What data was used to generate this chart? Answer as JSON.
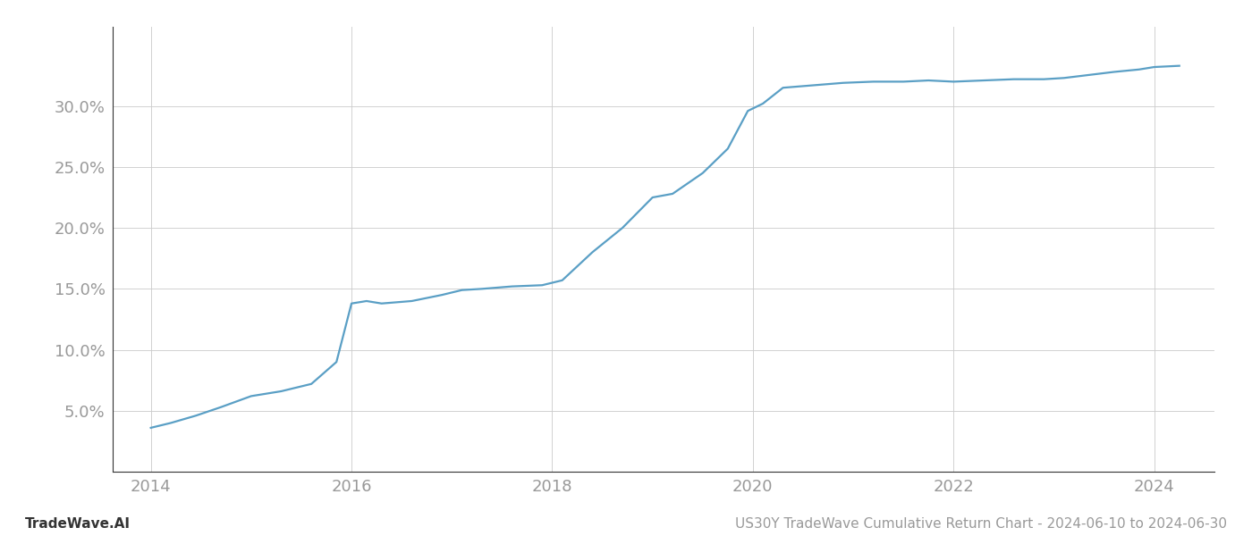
{
  "title": "US30Y TradeWave Cumulative Return Chart - 2024-06-10 to 2024-06-30",
  "watermark": "TradeWave.AI",
  "line_color": "#5a9fc5",
  "background_color": "#ffffff",
  "grid_color": "#cccccc",
  "x_values": [
    2014.0,
    2014.2,
    2014.45,
    2014.7,
    2015.0,
    2015.3,
    2015.6,
    2015.85,
    2016.0,
    2016.15,
    2016.3,
    2016.6,
    2016.9,
    2017.1,
    2017.3,
    2017.6,
    2017.9,
    2018.1,
    2018.4,
    2018.7,
    2019.0,
    2019.2,
    2019.5,
    2019.75,
    2019.95,
    2020.1,
    2020.3,
    2020.6,
    2020.9,
    2021.2,
    2021.5,
    2021.75,
    2022.0,
    2022.3,
    2022.6,
    2022.9,
    2023.1,
    2023.3,
    2023.6,
    2023.85,
    2024.0,
    2024.25
  ],
  "y_values": [
    3.6,
    4.0,
    4.6,
    5.3,
    6.2,
    6.6,
    7.2,
    9.0,
    13.8,
    14.0,
    13.8,
    14.0,
    14.5,
    14.9,
    15.0,
    15.2,
    15.3,
    15.7,
    18.0,
    20.0,
    22.5,
    22.8,
    24.5,
    26.5,
    29.6,
    30.2,
    31.5,
    31.7,
    31.9,
    32.0,
    32.0,
    32.1,
    32.0,
    32.1,
    32.2,
    32.2,
    32.3,
    32.5,
    32.8,
    33.0,
    33.2,
    33.3
  ],
  "xlim": [
    2013.62,
    2024.6
  ],
  "ylim": [
    0,
    36.5
  ],
  "xticks": [
    2014,
    2016,
    2018,
    2020,
    2022,
    2024
  ],
  "yticks": [
    5.0,
    10.0,
    15.0,
    20.0,
    25.0,
    30.0
  ],
  "tick_label_color": "#999999",
  "tick_fontsize": 13,
  "footer_fontsize": 11,
  "line_width": 1.6
}
